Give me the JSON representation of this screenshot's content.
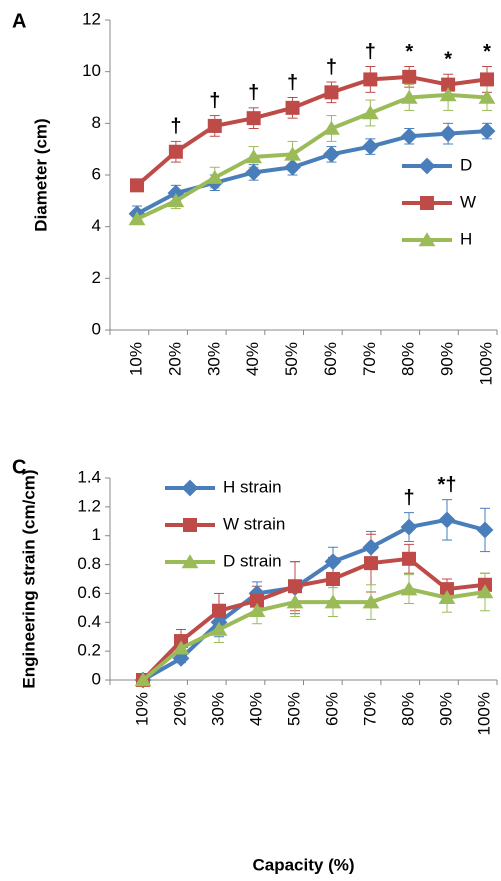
{
  "chart_data": [
    {
      "type": "line",
      "panel": "A",
      "ylabel": "Diameter (cm)",
      "categories": [
        "10%",
        "20%",
        "30%",
        "40%",
        "50%",
        "60%",
        "70%",
        "80%",
        "90%",
        "100%"
      ],
      "ylim": [
        0,
        12
      ],
      "yticks": [
        0,
        2,
        4,
        6,
        8,
        10,
        12
      ],
      "legend": "lower right",
      "series": [
        {
          "name": "D",
          "color": "#4a7ebb",
          "marker": "diamond",
          "values": [
            4.5,
            5.3,
            5.7,
            6.1,
            6.3,
            6.8,
            7.1,
            7.5,
            7.6,
            7.7
          ],
          "errors": [
            0.3,
            0.3,
            0.3,
            0.3,
            0.3,
            0.3,
            0.3,
            0.3,
            0.4,
            0.3
          ]
        },
        {
          "name": "W",
          "color": "#be4b48",
          "marker": "square",
          "values": [
            5.6,
            6.9,
            7.9,
            8.2,
            8.6,
            9.2,
            9.7,
            9.8,
            9.5,
            9.7
          ],
          "errors": [
            0.2,
            0.4,
            0.4,
            0.4,
            0.4,
            0.4,
            0.5,
            0.4,
            0.4,
            0.5
          ]
        },
        {
          "name": "H",
          "color": "#9bbb59",
          "marker": "triangle",
          "values": [
            4.3,
            5.0,
            5.9,
            6.7,
            6.8,
            7.8,
            8.4,
            9.0,
            9.1,
            9.0
          ],
          "errors": [
            0.2,
            0.3,
            0.4,
            0.4,
            0.5,
            0.5,
            0.5,
            0.5,
            0.6,
            0.5
          ]
        }
      ],
      "significance": [
        null,
        "†",
        "†",
        "†",
        "†",
        "†",
        "†",
        "*",
        "*",
        "*"
      ]
    },
    {
      "type": "line",
      "panel": "C",
      "ylabel": "Engineering strain (cm/cm)",
      "xlabel": "Capacity (%)",
      "categories": [
        "10%",
        "20%",
        "30%",
        "40%",
        "50%",
        "60%",
        "70%",
        "80%",
        "90%",
        "100%"
      ],
      "ylim": [
        0,
        1.4
      ],
      "yticks": [
        0,
        0.2,
        0.4,
        0.6,
        0.8,
        1,
        1.2,
        1.4
      ],
      "legend": "upper left",
      "series": [
        {
          "name": "H strain",
          "color": "#4a7ebb",
          "marker": "diamond",
          "values": [
            0,
            0.15,
            0.4,
            0.6,
            0.64,
            0.82,
            0.92,
            1.06,
            1.11,
            1.04
          ],
          "errors": [
            0,
            0.03,
            0.1,
            0.08,
            0.18,
            0.1,
            0.11,
            0.1,
            0.14,
            0.15
          ]
        },
        {
          "name": "W strain",
          "color": "#be4b48",
          "marker": "square",
          "values": [
            0,
            0.27,
            0.48,
            0.55,
            0.65,
            0.7,
            0.81,
            0.84,
            0.63,
            0.66
          ],
          "errors": [
            0,
            0.08,
            0.12,
            0.1,
            0.17,
            0.15,
            0.2,
            0.1,
            0.07,
            0.08
          ]
        },
        {
          "name": "D strain",
          "color": "#9bbb59",
          "marker": "triangle",
          "values": [
            0,
            0.22,
            0.35,
            0.48,
            0.54,
            0.54,
            0.54,
            0.63,
            0.57,
            0.61
          ],
          "errors": [
            0,
            0.06,
            0.09,
            0.09,
            0.1,
            0.1,
            0.12,
            0.1,
            0.1,
            0.13
          ]
        }
      ],
      "significance": [
        null,
        null,
        null,
        null,
        null,
        null,
        null,
        "†",
        "*†",
        null
      ]
    }
  ]
}
